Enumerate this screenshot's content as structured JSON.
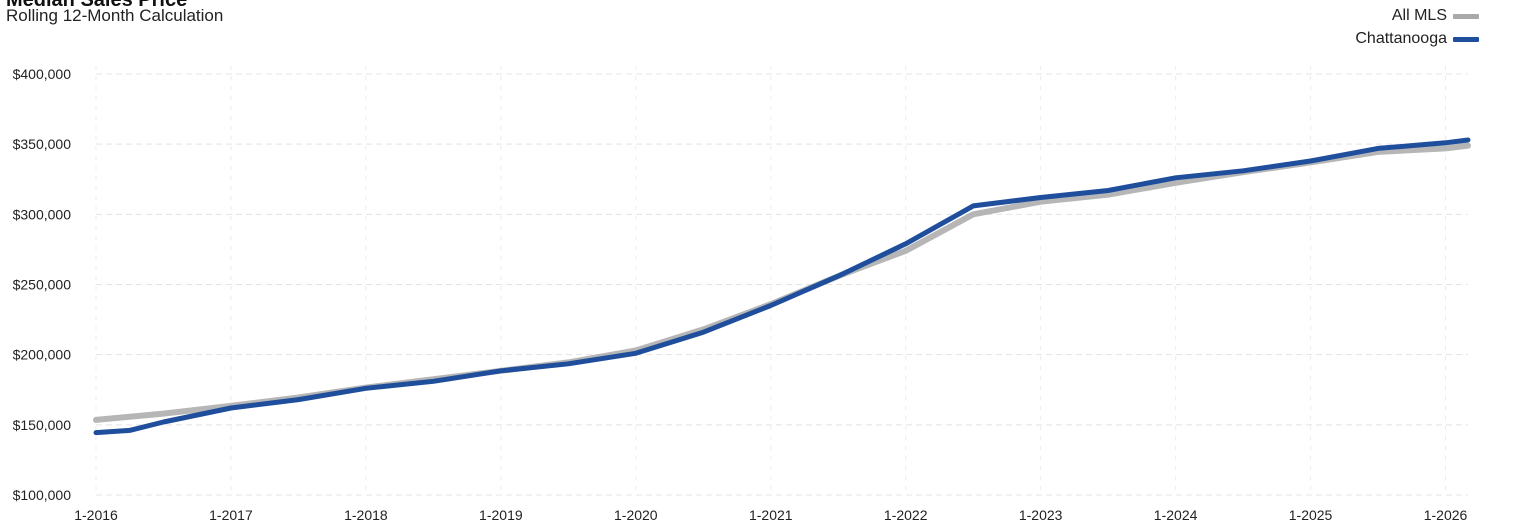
{
  "chart_data": {
    "type": "line",
    "title": "Median Sales Price",
    "subtitle": "Rolling 12-Month Calculation",
    "x_ticks": [
      "1-2016",
      "1-2017",
      "1-2018",
      "1-2019",
      "1-2020",
      "1-2021",
      "1-2022",
      "1-2023",
      "1-2024",
      "1-2025",
      "1-2026"
    ],
    "y_ticks": [
      "$400,000",
      "$350,000",
      "$300,000",
      "$250,000",
      "$200,000",
      "$150,000",
      "$100,000"
    ],
    "ylim": [
      100000,
      400000
    ],
    "xlim": [
      "1-2016",
      "3-2026"
    ],
    "grid": true,
    "legend_position": "top-right",
    "series": [
      {
        "name": "All MLS",
        "color": "#a9a9a9",
        "points": [
          [
            "1-2016",
            153500
          ],
          [
            "7-2016",
            158000
          ],
          [
            "1-2017",
            163500
          ],
          [
            "7-2017",
            169500
          ],
          [
            "1-2018",
            176500
          ],
          [
            "7-2018",
            182500
          ],
          [
            "1-2019",
            188500
          ],
          [
            "7-2019",
            194500
          ],
          [
            "1-2020",
            203000
          ],
          [
            "7-2020",
            218000
          ],
          [
            "1-2021",
            236000
          ],
          [
            "7-2021",
            256000
          ],
          [
            "1-2022",
            274000
          ],
          [
            "7-2022",
            300000
          ],
          [
            "1-2023",
            309000
          ],
          [
            "7-2023",
            314000
          ],
          [
            "1-2024",
            322500
          ],
          [
            "7-2024",
            330000
          ],
          [
            "1-2025",
            337000
          ],
          [
            "7-2025",
            344500
          ],
          [
            "1-2026",
            347000
          ],
          [
            "3-2026",
            349000
          ]
        ]
      },
      {
        "name": "Chattanooga",
        "color": "#1f4e9c",
        "points": [
          [
            "1-2016",
            144500
          ],
          [
            "4-2016",
            146000
          ],
          [
            "7-2016",
            152000
          ],
          [
            "1-2017",
            162000
          ],
          [
            "7-2017",
            168000
          ],
          [
            "1-2018",
            176000
          ],
          [
            "7-2018",
            181000
          ],
          [
            "1-2019",
            188500
          ],
          [
            "7-2019",
            193500
          ],
          [
            "1-2020",
            201000
          ],
          [
            "7-2020",
            216000
          ],
          [
            "1-2021",
            235000
          ],
          [
            "7-2021",
            256000
          ],
          [
            "1-2022",
            279000
          ],
          [
            "7-2022",
            306000
          ],
          [
            "1-2023",
            312000
          ],
          [
            "7-2023",
            317000
          ],
          [
            "1-2024",
            326000
          ],
          [
            "7-2024",
            331000
          ],
          [
            "1-2025",
            338000
          ],
          [
            "7-2025",
            347000
          ],
          [
            "1-2026",
            351000
          ],
          [
            "3-2026",
            353000
          ]
        ]
      }
    ]
  }
}
